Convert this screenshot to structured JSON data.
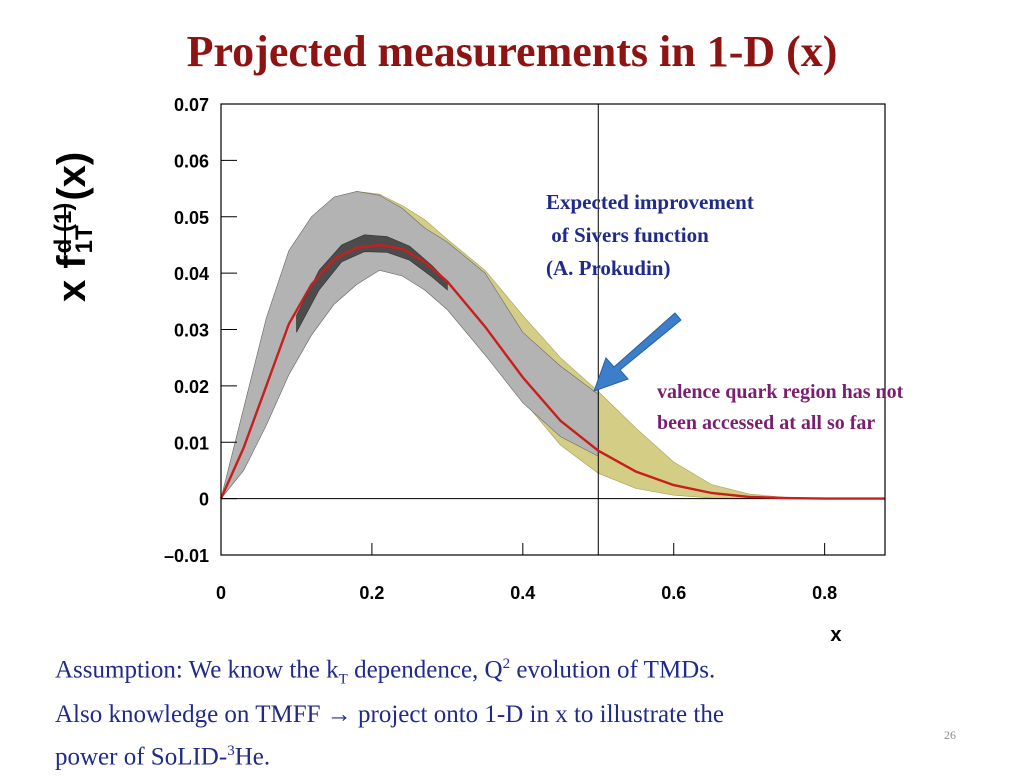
{
  "slide": {
    "title": "Projected measurements in 1-D  (x)",
    "page_number": "26"
  },
  "annotations": {
    "expected_line1": "Expected improvement",
    "expected_line2": " of Sivers function",
    "expected_line3": "(A. Prokudin)",
    "valence_line1": "valence quark region has not",
    "valence_line2": "been accessed at all so far"
  },
  "footer": {
    "p1": "Assumption: We know the k",
    "p1_sub": "T",
    "p2": " dependence, Q",
    "p2_sup": "2",
    "p3": " evolution of TMDs.",
    "p4": "Also knowledge on TMFF ",
    "arrow": "→",
    "p5": " project onto 1-D in x to illustrate the",
    "p6": "power of SoLID-",
    "p6_sup": "3",
    "p7": "He."
  },
  "ylabel": {
    "prefix": "x f",
    "superscript": "d (1)",
    "subscript": "1T",
    "suffix": "(x)"
  },
  "colors": {
    "title": "#8e1414",
    "text_blue": "#1f2a8a",
    "text_purple": "#7a1f6f",
    "band_olive": "#d3cd86",
    "band_gray": "#b3b3b3",
    "band_dark": "#4c4c4c",
    "curve_red": "#c81e1e",
    "arrow_blue": "#3d7ecb"
  },
  "chart_data": {
    "type": "line",
    "xlabel": "x",
    "ylabel": "x f1T⊥d(1)(x)",
    "xlim": [
      0,
      0.88
    ],
    "ylim": [
      -0.01,
      0.07
    ],
    "x_ticks": [
      "0",
      "0.2",
      "0.4",
      "0.6",
      "0.8"
    ],
    "x_tick_values": [
      0,
      0.2,
      0.4,
      0.6,
      0.8
    ],
    "y_ticks": [
      "–0.01",
      "0",
      "0.01",
      "0.02",
      "0.03",
      "0.04",
      "0.05",
      "0.06",
      "0.07"
    ],
    "y_tick_values": [
      -0.01,
      0,
      0.01,
      0.02,
      0.03,
      0.04,
      0.05,
      0.06,
      0.07
    ],
    "vertical_line_x": 0.5,
    "horizontal_line_y": 0,
    "series": [
      {
        "role": "central curve",
        "x": [
          0,
          0.03,
          0.06,
          0.09,
          0.12,
          0.15,
          0.18,
          0.21,
          0.24,
          0.27,
          0.3,
          0.35,
          0.4,
          0.45,
          0.5,
          0.55,
          0.6,
          0.65,
          0.7,
          0.75,
          0.8,
          0.88
        ],
        "y": [
          0,
          0.009,
          0.02,
          0.031,
          0.038,
          0.0425,
          0.0445,
          0.045,
          0.0443,
          0.042,
          0.0385,
          0.0305,
          0.0215,
          0.0138,
          0.0085,
          0.0048,
          0.0024,
          0.001,
          0.0003,
          0.0001,
          0,
          0
        ]
      },
      {
        "role": "current uncertainty band",
        "x": [
          0,
          0.03,
          0.06,
          0.09,
          0.12,
          0.15,
          0.18,
          0.21,
          0.24,
          0.27,
          0.3,
          0.35,
          0.4,
          0.45,
          0.5,
          0.55,
          0.6,
          0.65,
          0.7,
          0.75,
          0.8,
          0.88
        ],
        "upper": [
          0,
          0.016,
          0.032,
          0.044,
          0.05,
          0.0535,
          0.0545,
          0.054,
          0.052,
          0.0495,
          0.046,
          0.0405,
          0.0325,
          0.025,
          0.019,
          0.0125,
          0.0065,
          0.0025,
          0.0008,
          0.0002,
          0,
          0
        ],
        "lower": [
          0,
          0.005,
          0.013,
          0.022,
          0.029,
          0.0345,
          0.038,
          0.0405,
          0.0398,
          0.037,
          0.0335,
          0.0255,
          0.0175,
          0.0095,
          0.0045,
          0.0018,
          0.0006,
          0.0001,
          0,
          0,
          0,
          0
        ]
      },
      {
        "role": "gray band (up to x = 0.5)",
        "x": [
          0,
          0.03,
          0.06,
          0.09,
          0.12,
          0.15,
          0.18,
          0.21,
          0.24,
          0.27,
          0.3,
          0.35,
          0.4,
          0.45,
          0.5
        ],
        "upper": [
          0,
          0.016,
          0.032,
          0.044,
          0.05,
          0.0535,
          0.0545,
          0.0538,
          0.0515,
          0.048,
          0.0455,
          0.04,
          0.0295,
          0.0235,
          0.0185
        ],
        "lower": [
          0,
          0.005,
          0.013,
          0.022,
          0.029,
          0.0345,
          0.038,
          0.0405,
          0.0395,
          0.037,
          0.0335,
          0.0255,
          0.017,
          0.011,
          0.0075
        ]
      },
      {
        "role": "projected band",
        "x": [
          0.1,
          0.13,
          0.16,
          0.19,
          0.22,
          0.25,
          0.28,
          0.3
        ],
        "upper": [
          0.0325,
          0.0405,
          0.045,
          0.0468,
          0.0465,
          0.0448,
          0.0413,
          0.0385
        ],
        "lower": [
          0.0295,
          0.037,
          0.042,
          0.0438,
          0.0437,
          0.0423,
          0.0393,
          0.037
        ]
      }
    ]
  }
}
